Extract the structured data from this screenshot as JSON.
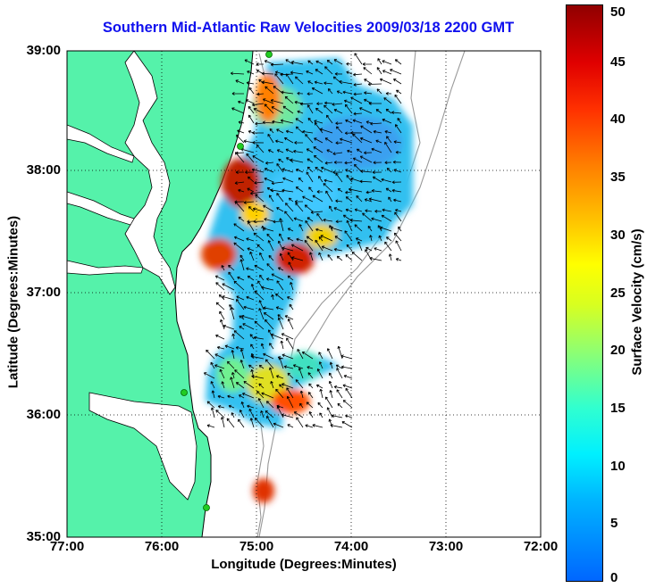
{
  "title": "Southern Mid-Atlantic Raw Velocities 2009/03/18 2200 GMT",
  "x_axis": {
    "label": "Longitude (Degrees:Minutes)",
    "ticks": [
      "77:00",
      "76:00",
      "75:00",
      "74:00",
      "73:00",
      "72:00"
    ]
  },
  "y_axis": {
    "label": "Latitude (Degrees:Minutes)",
    "ticks": [
      "39:00",
      "38:00",
      "37:00",
      "36:00",
      "35:00"
    ]
  },
  "colorbar": {
    "label": "Surface Velocity (cm/s)",
    "ticks": [
      "50",
      "45",
      "40",
      "35",
      "30",
      "25",
      "20",
      "15",
      "10",
      "5",
      "0"
    ],
    "range": [
      0,
      50
    ]
  },
  "map": {
    "lon_range_west": [
      77,
      72
    ],
    "lat_range": [
      35,
      39
    ],
    "land_color": "#55f2aa",
    "water_color": "#ffffff",
    "grid": "dotted",
    "radar_site_color": "#22cc22"
  }
}
